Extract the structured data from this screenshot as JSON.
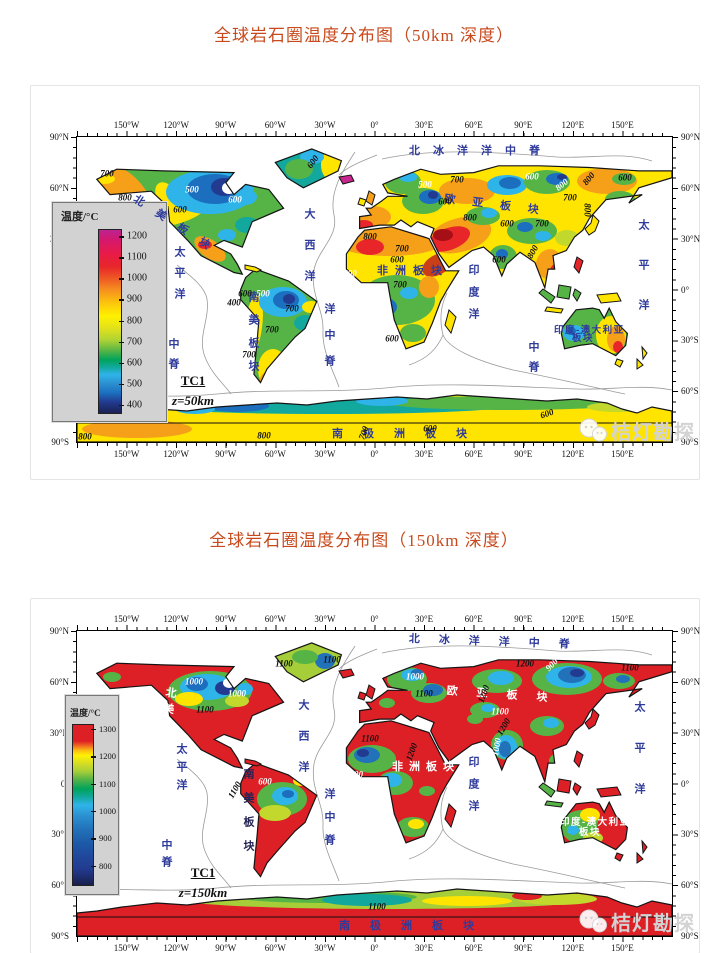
{
  "page": {
    "background": "#ffffff",
    "title_color": "#c84a1c"
  },
  "colors": {
    "label_blue": "#2f3b9b",
    "label_white": "#ffffff",
    "label_dark": "#232355",
    "value_black": "#111111",
    "legend_bg": "#d2d2d2",
    "map_red": "#dd1f26"
  },
  "figures": [
    {
      "title": "全球岩石圈温度分布图（50km 深度）",
      "tc": {
        "name": "TC1",
        "depth": "z=50km"
      },
      "watermark": "桔灯勘探",
      "axes": {
        "lon": [
          "150°W",
          "120°W",
          "90°W",
          "60°W",
          "30°W",
          "0°",
          "30°E",
          "60°E",
          "90°E",
          "120°E",
          "150°E"
        ],
        "lat": [
          "90°N",
          "60°N",
          "30°N",
          "0°",
          "30°S",
          "60°S",
          "90°S"
        ]
      },
      "legend": {
        "title": "温度/°C",
        "ticks": [
          "1200",
          "1100",
          "1000",
          "900",
          "800",
          "700",
          "600",
          "500",
          "400"
        ],
        "gradient": [
          [
            0,
            "#bc2390"
          ],
          [
            6,
            "#d6186b"
          ],
          [
            13,
            "#e81b47"
          ],
          [
            20,
            "#e8262a"
          ],
          [
            27,
            "#ef5d24"
          ],
          [
            33,
            "#f6911e"
          ],
          [
            40,
            "#fcc60c"
          ],
          [
            47,
            "#fff100"
          ],
          [
            54,
            "#e0e11c"
          ],
          [
            60,
            "#b0d433"
          ],
          [
            66,
            "#56b447"
          ],
          [
            71,
            "#00a35c"
          ],
          [
            75,
            "#12a89d"
          ],
          [
            79,
            "#2fb4e9"
          ],
          [
            84,
            "#2b8fd0"
          ],
          [
            89,
            "#1c6fbf"
          ],
          [
            94,
            "#223a8f"
          ],
          [
            100,
            "#1a2155"
          ]
        ]
      },
      "labels": [
        [
          332,
          9,
          "北冰洋洋中脊",
          "h",
          13,
          "blue",
          11,
          0
        ],
        [
          226,
          71,
          "大西洋",
          "v",
          20,
          "blue",
          11,
          0
        ],
        [
          246,
          166,
          "洋中脊",
          "v",
          15,
          "blue",
          11,
          0
        ],
        [
          96,
          109,
          "太平洋",
          "v",
          10,
          "blue",
          11,
          0
        ],
        [
          90,
          201,
          "中脊",
          "v",
          9,
          "blue",
          11,
          0
        ],
        [
          560,
          82,
          "太平洋",
          "v",
          29,
          "blue",
          11,
          0
        ],
        [
          390,
          127,
          "印度洋",
          "v",
          11,
          "blue",
          11,
          0
        ],
        [
          450,
          204,
          "中脊",
          "v",
          9,
          "blue",
          11,
          0
        ],
        [
          60,
          57,
          "北美板块",
          "h",
          15,
          "blue",
          11,
          33
        ],
        [
          170,
          154,
          "南美板块",
          "v",
          12,
          "blue",
          11,
          0
        ],
        [
          300,
          129,
          "非洲板块",
          "h",
          7,
          "blue",
          11,
          0
        ],
        [
          368,
          57,
          "欧亚板块",
          "h",
          17,
          "blue",
          11,
          7
        ],
        [
          477,
          189,
          "印度-澳大利亚",
          "h",
          1.5,
          "blue",
          9.5,
          0
        ],
        [
          495,
          197,
          "板块",
          "h",
          1.5,
          "blue",
          9.5,
          0
        ],
        [
          255,
          292,
          "南极洲板块",
          "h",
          20,
          "blue",
          11,
          0
        ]
      ],
      "values": [
        [
          30,
          37,
          "700",
          "k",
          0
        ],
        [
          48,
          61,
          "800",
          "k",
          0
        ],
        [
          115,
          53,
          "500",
          "w",
          0
        ],
        [
          103,
          73,
          "600",
          "k",
          0
        ],
        [
          158,
          63,
          "600",
          "w",
          0
        ],
        [
          236,
          25,
          "600",
          "k",
          -55
        ],
        [
          348,
          48,
          "500",
          "w",
          0
        ],
        [
          380,
          43,
          "700",
          "k",
          0
        ],
        [
          368,
          65,
          "600",
          "k",
          0
        ],
        [
          393,
          81,
          "800",
          "k",
          0
        ],
        [
          455,
          40,
          "600",
          "w",
          0
        ],
        [
          485,
          48,
          "800",
          "w",
          -40
        ],
        [
          493,
          61,
          "700",
          "k",
          0
        ],
        [
          548,
          41,
          "600",
          "k",
          0
        ],
        [
          512,
          42,
          "800",
          "k",
          -50
        ],
        [
          510,
          73,
          "800",
          "k",
          90
        ],
        [
          430,
          87,
          "600",
          "k",
          0
        ],
        [
          465,
          87,
          "700",
          "k",
          0
        ],
        [
          422,
          123,
          "600",
          "k",
          0
        ],
        [
          456,
          115,
          "800",
          "k",
          -60
        ],
        [
          293,
          100,
          "800",
          "k",
          0
        ],
        [
          325,
          112,
          "700",
          "k",
          0
        ],
        [
          320,
          123,
          "600",
          "k",
          0
        ],
        [
          273,
          137,
          "500",
          "w",
          0
        ],
        [
          323,
          148,
          "700",
          "k",
          0
        ],
        [
          315,
          202,
          "600",
          "k",
          0
        ],
        [
          168,
          157,
          "600",
          "k",
          0
        ],
        [
          186,
          157,
          "500",
          "w",
          0
        ],
        [
          157,
          166,
          "400",
          "k",
          0
        ],
        [
          215,
          172,
          "700",
          "k",
          0
        ],
        [
          195,
          193,
          "700",
          "k",
          0
        ],
        [
          172,
          218,
          "700",
          "k",
          0
        ],
        [
          8,
          300,
          "800",
          "k",
          0
        ],
        [
          187,
          299,
          "800",
          "k",
          0
        ],
        [
          353,
          292,
          "600",
          "k",
          0
        ],
        [
          470,
          277,
          "600",
          "k",
          -20
        ],
        [
          287,
          296,
          "700",
          "k",
          -70
        ]
      ]
    },
    {
      "title": "全球岩石圈温度分布图（150km 深度）",
      "tc": {
        "name": "TC1",
        "depth": "z=150km"
      },
      "watermark": "桔灯勘探",
      "axes": {
        "lon": [
          "150°W",
          "120°W",
          "90°W",
          "60°W",
          "30°W",
          "0°",
          "30°E",
          "60°E",
          "90°E",
          "120°E",
          "150°E"
        ],
        "lat": [
          "90°N",
          "60°N",
          "30°N",
          "0°",
          "30°S",
          "60°S",
          "90°S"
        ]
      },
      "legend": {
        "title": "温度/°C",
        "ticks": [
          "1300",
          "1200",
          "1100",
          "1000",
          "900",
          "800"
        ],
        "gradient": [
          [
            0,
            "#dd1f26"
          ],
          [
            10,
            "#dd1f26"
          ],
          [
            13,
            "#f0691f"
          ],
          [
            16,
            "#fbbf12"
          ],
          [
            19,
            "#fff100"
          ],
          [
            24,
            "#d5de24"
          ],
          [
            29,
            "#a6ce39"
          ],
          [
            34,
            "#56b447"
          ],
          [
            40,
            "#00a35c"
          ],
          [
            45,
            "#12a89d"
          ],
          [
            50,
            "#2fb4e9"
          ],
          [
            57,
            "#2b8fd0"
          ],
          [
            65,
            "#2272b9"
          ],
          [
            74,
            "#1c5aa8"
          ],
          [
            82,
            "#20489c"
          ],
          [
            90,
            "#223a8f"
          ],
          [
            100,
            "#191f4e"
          ]
        ]
      },
      "labels": [
        [
          332,
          3,
          "北冰洋洋中脊",
          "h",
          19,
          "blue",
          11,
          2
        ],
        [
          220,
          68,
          "大西洋",
          "v",
          20,
          "blue",
          11,
          0
        ],
        [
          246,
          157,
          "洋中脊",
          "v",
          12,
          "blue",
          11,
          0
        ],
        [
          98,
          112,
          "太平洋",
          "v",
          7,
          "blue",
          11,
          0
        ],
        [
          83,
          208,
          "中脊",
          "v",
          6,
          "blue",
          11,
          0
        ],
        [
          556,
          70,
          "太平洋",
          "v",
          30,
          "blue",
          11,
          0
        ],
        [
          390,
          125,
          "印度洋",
          "v",
          11,
          "blue",
          11,
          0
        ],
        [
          88,
          55,
          "北美板块",
          "v",
          5,
          "white",
          11,
          8
        ],
        [
          370,
          55,
          "欧亚板块",
          "h",
          19,
          "white",
          11,
          4
        ],
        [
          315,
          131,
          "非洲板块",
          "h",
          6,
          "white",
          11,
          0
        ],
        [
          483,
          187,
          "印度-澳大利亚",
          "h",
          1.5,
          "white",
          9.5,
          0
        ],
        [
          502,
          197,
          "板块",
          "h",
          1.5,
          "white",
          9.5,
          0
        ],
        [
          262,
          290,
          "南极洲板块",
          "h",
          20,
          "blue",
          11,
          0
        ],
        [
          165,
          137,
          "南美板块",
          "v",
          13,
          "dark",
          11,
          0
        ]
      ],
      "values": [
        [
          117,
          51,
          "1000",
          "w",
          0
        ],
        [
          160,
          63,
          "1000",
          "w",
          0
        ],
        [
          207,
          33,
          "1100",
          "k",
          0
        ],
        [
          128,
          79,
          "1100",
          "k",
          0
        ],
        [
          188,
          151,
          "600",
          "w",
          0
        ],
        [
          158,
          159,
          "1100",
          "k",
          -60
        ],
        [
          448,
          33,
          "1200",
          "k",
          0
        ],
        [
          475,
          34,
          "900",
          "w",
          -45
        ],
        [
          338,
          46,
          "1000",
          "w",
          0
        ],
        [
          347,
          63,
          "1100",
          "k",
          0
        ],
        [
          407,
          63,
          "1200",
          "k",
          -70
        ],
        [
          423,
          81,
          "1100",
          "w",
          0
        ],
        [
          427,
          96,
          "1200",
          "k",
          -60
        ],
        [
          420,
          116,
          "1000",
          "w",
          -80
        ],
        [
          293,
          108,
          "1100",
          "k",
          0
        ],
        [
          335,
          121,
          "1200",
          "k",
          -70
        ],
        [
          277,
          144,
          "1000",
          "w",
          0
        ],
        [
          553,
          37,
          "1100",
          "k",
          0
        ],
        [
          300,
          276,
          "1100",
          "k",
          0
        ],
        [
          255,
          29,
          "1100",
          "k",
          0
        ]
      ]
    }
  ]
}
